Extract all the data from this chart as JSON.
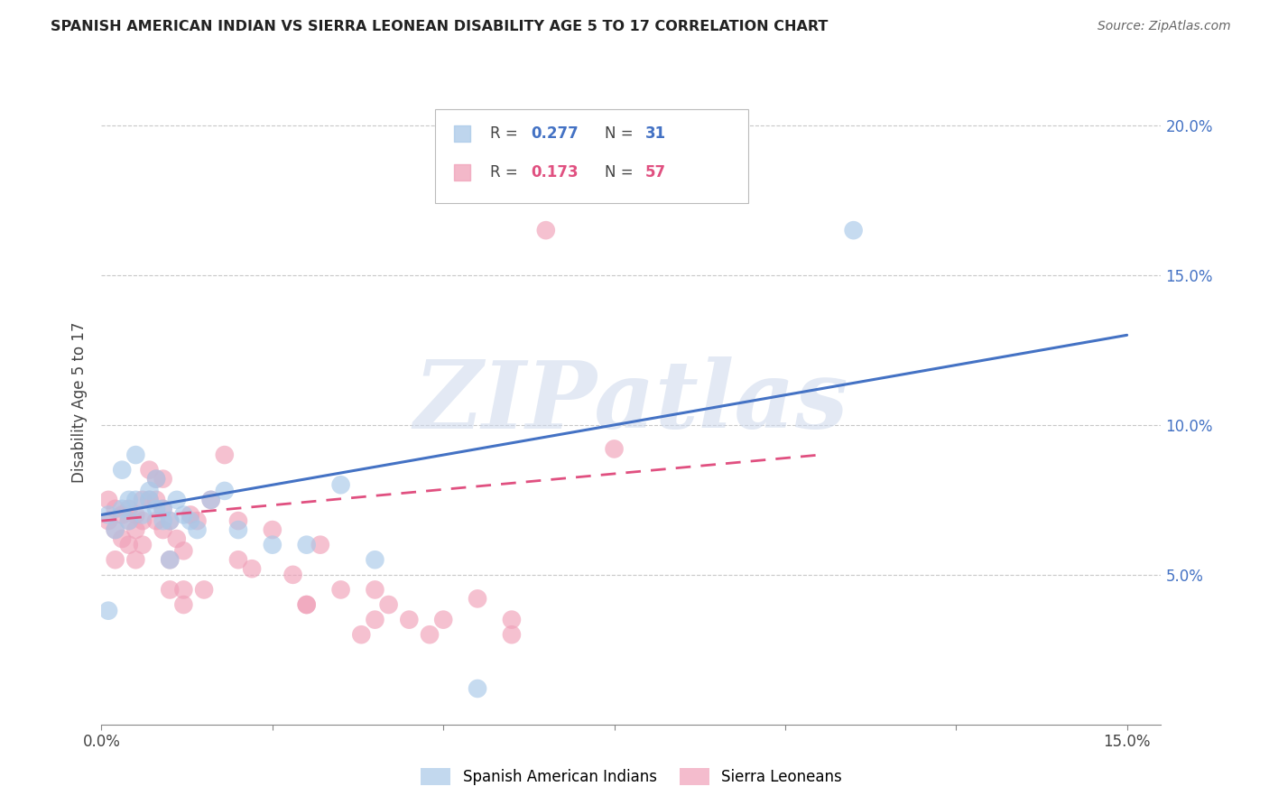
{
  "title": "SPANISH AMERICAN INDIAN VS SIERRA LEONEAN DISABILITY AGE 5 TO 17 CORRELATION CHART",
  "source": "Source: ZipAtlas.com",
  "ylabel": "Disability Age 5 to 17",
  "xlim": [
    0.0,
    0.155
  ],
  "ylim": [
    0.0,
    0.215
  ],
  "blue_R": "0.277",
  "blue_N": "31",
  "pink_R": "0.173",
  "pink_N": "57",
  "blue_scatter_x": [
    0.001,
    0.001,
    0.002,
    0.003,
    0.003,
    0.004,
    0.004,
    0.005,
    0.005,
    0.006,
    0.007,
    0.007,
    0.008,
    0.008,
    0.009,
    0.009,
    0.01,
    0.01,
    0.011,
    0.012,
    0.013,
    0.014,
    0.016,
    0.018,
    0.02,
    0.025,
    0.03,
    0.035,
    0.04,
    0.11,
    0.055
  ],
  "blue_scatter_y": [
    0.038,
    0.07,
    0.065,
    0.072,
    0.085,
    0.075,
    0.068,
    0.09,
    0.075,
    0.07,
    0.075,
    0.078,
    0.082,
    0.072,
    0.072,
    0.068,
    0.068,
    0.055,
    0.075,
    0.07,
    0.068,
    0.065,
    0.075,
    0.078,
    0.065,
    0.06,
    0.06,
    0.08,
    0.055,
    0.165,
    0.012
  ],
  "pink_scatter_x": [
    0.001,
    0.001,
    0.002,
    0.002,
    0.002,
    0.003,
    0.003,
    0.004,
    0.004,
    0.004,
    0.005,
    0.005,
    0.005,
    0.006,
    0.006,
    0.006,
    0.007,
    0.007,
    0.008,
    0.008,
    0.008,
    0.009,
    0.009,
    0.009,
    0.01,
    0.01,
    0.01,
    0.011,
    0.012,
    0.012,
    0.012,
    0.013,
    0.014,
    0.015,
    0.016,
    0.018,
    0.02,
    0.02,
    0.022,
    0.025,
    0.028,
    0.03,
    0.032,
    0.035,
    0.038,
    0.04,
    0.042,
    0.045,
    0.048,
    0.06,
    0.065,
    0.075,
    0.04,
    0.03,
    0.05,
    0.06,
    0.055
  ],
  "pink_scatter_y": [
    0.068,
    0.075,
    0.065,
    0.072,
    0.055,
    0.07,
    0.062,
    0.072,
    0.06,
    0.068,
    0.065,
    0.07,
    0.055,
    0.068,
    0.06,
    0.075,
    0.085,
    0.075,
    0.075,
    0.082,
    0.068,
    0.072,
    0.082,
    0.065,
    0.068,
    0.055,
    0.045,
    0.062,
    0.058,
    0.045,
    0.04,
    0.07,
    0.068,
    0.045,
    0.075,
    0.09,
    0.068,
    0.055,
    0.052,
    0.065,
    0.05,
    0.04,
    0.06,
    0.045,
    0.03,
    0.045,
    0.04,
    0.035,
    0.03,
    0.035,
    0.165,
    0.092,
    0.035,
    0.04,
    0.035,
    0.03,
    0.042
  ],
  "blue_line_x": [
    0.0,
    0.15
  ],
  "blue_line_y": [
    0.07,
    0.13
  ],
  "pink_line_x": [
    0.0,
    0.105
  ],
  "pink_line_y": [
    0.068,
    0.09
  ],
  "blue_color": "#a8c8e8",
  "pink_color": "#f0a0b8",
  "blue_line_color": "#4472c4",
  "pink_line_color": "#e05080",
  "watermark": "ZIPatlas",
  "background_color": "#ffffff",
  "grid_color": "#c8c8c8",
  "ytick_positions": [
    0.05,
    0.1,
    0.15,
    0.2
  ],
  "xtick_positions": [
    0.0,
    0.025,
    0.05,
    0.075,
    0.1,
    0.125,
    0.15
  ]
}
